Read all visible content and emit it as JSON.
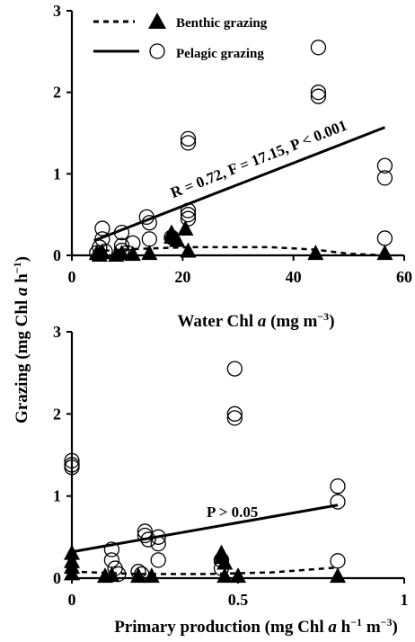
{
  "shared": {
    "ylabel_main": "Grazing (mg Chl ",
    "ylabel_italic": "a",
    "ylabel_tail": " h",
    "ylabel_sup": "−1",
    "ylabel_close": ")",
    "legend": {
      "benthic": "Benthic grazing",
      "pelagic": "Pelagic grazing"
    }
  },
  "chart_data": [
    {
      "type": "scatter",
      "panel": "top",
      "xlabel_parts": [
        "Water Chl ",
        "a",
        " (mg m",
        "−3",
        ")"
      ],
      "xlim": [
        0,
        60
      ],
      "ylim": [
        0,
        3
      ],
      "xticks": [
        "0",
        "20",
        "40",
        "60"
      ],
      "yticks": [
        "0",
        "1",
        "2",
        "3"
      ],
      "annotation": "R = 0.72, F = 17.15, P < 0.001",
      "pelagic_points": [
        [
          4.5,
          0.03
        ],
        [
          5,
          0.1
        ],
        [
          5.5,
          0.33
        ],
        [
          5.5,
          0.2
        ],
        [
          6,
          0.05
        ],
        [
          9,
          0.28
        ],
        [
          9,
          0.12
        ],
        [
          9,
          0.06
        ],
        [
          10,
          0.03
        ],
        [
          11,
          0.15
        ],
        [
          13.5,
          0.47
        ],
        [
          14,
          0.4
        ],
        [
          14,
          0.2
        ],
        [
          18,
          0.22
        ],
        [
          21,
          1.43
        ],
        [
          21,
          1.38
        ],
        [
          21,
          0.55
        ],
        [
          21,
          0.5
        ],
        [
          21,
          0.45
        ],
        [
          44.5,
          2.55
        ],
        [
          44.5,
          2.0
        ],
        [
          44.5,
          1.95
        ],
        [
          56.5,
          1.1
        ],
        [
          56.5,
          0.95
        ],
        [
          56.5,
          0.21
        ]
      ],
      "benthic_points": [
        [
          4.5,
          0.02
        ],
        [
          5,
          0.0
        ],
        [
          5.5,
          0.03
        ],
        [
          8,
          0.0
        ],
        [
          9,
          0.02
        ],
        [
          11,
          0.01
        ],
        [
          14,
          0.02
        ],
        [
          18,
          0.27
        ],
        [
          18,
          0.22
        ],
        [
          19,
          0.18
        ],
        [
          20.5,
          0.32
        ],
        [
          21,
          0.05
        ],
        [
          44,
          0.02
        ],
        [
          56.5,
          0.02
        ]
      ],
      "pelagic_fit": [
        [
          4,
          0.18
        ],
        [
          56.5,
          1.57
        ]
      ],
      "benthic_fit": [
        [
          4,
          0.05
        ],
        [
          12,
          0.08
        ],
        [
          21,
          0.1
        ],
        [
          36,
          0.1
        ],
        [
          44,
          0.07
        ],
        [
          50,
          0.02
        ],
        [
          56.5,
          0.0
        ]
      ]
    },
    {
      "type": "scatter",
      "panel": "bottom",
      "xlabel_parts": [
        "Primary production (mg Chl ",
        "a",
        " h",
        "−1",
        " m",
        "−3",
        ")"
      ],
      "xlim": [
        0,
        1
      ],
      "ylim": [
        0,
        3
      ],
      "xticks": [
        "0",
        "0.5",
        "1"
      ],
      "yticks": [
        "0",
        "1",
        "2",
        "3"
      ],
      "annotation": "P > 0.05",
      "pelagic_points": [
        [
          0.0,
          1.43
        ],
        [
          0.0,
          1.38
        ],
        [
          0.0,
          1.35
        ],
        [
          0.12,
          0.35
        ],
        [
          0.12,
          0.22
        ],
        [
          0.13,
          0.12
        ],
        [
          0.14,
          0.05
        ],
        [
          0.2,
          0.08
        ],
        [
          0.21,
          0.05
        ],
        [
          0.22,
          0.57
        ],
        [
          0.22,
          0.52
        ],
        [
          0.23,
          0.47
        ],
        [
          0.26,
          0.5
        ],
        [
          0.26,
          0.42
        ],
        [
          0.26,
          0.22
        ],
        [
          0.45,
          0.22
        ],
        [
          0.45,
          0.12
        ],
        [
          0.49,
          2.55
        ],
        [
          0.49,
          2.0
        ],
        [
          0.49,
          1.95
        ],
        [
          0.8,
          1.12
        ],
        [
          0.8,
          0.93
        ],
        [
          0.8,
          0.21
        ]
      ],
      "benthic_points": [
        [
          0.0,
          0.3
        ],
        [
          0.0,
          0.2
        ],
        [
          0.0,
          0.13
        ],
        [
          0.0,
          0.05
        ],
        [
          0.1,
          0.02
        ],
        [
          0.12,
          0.03
        ],
        [
          0.2,
          0.02
        ],
        [
          0.24,
          0.02
        ],
        [
          0.45,
          0.3
        ],
        [
          0.45,
          0.25
        ],
        [
          0.46,
          0.18
        ],
        [
          0.46,
          0.02
        ],
        [
          0.5,
          0.02
        ],
        [
          0.8,
          0.02
        ]
      ],
      "pelagic_fit": [
        [
          0.0,
          0.32
        ],
        [
          0.8,
          0.89
        ]
      ],
      "benthic_fit": [
        [
          0.0,
          0.08
        ],
        [
          0.2,
          0.05
        ],
        [
          0.4,
          0.05
        ],
        [
          0.6,
          0.07
        ],
        [
          0.8,
          0.13
        ]
      ]
    }
  ]
}
